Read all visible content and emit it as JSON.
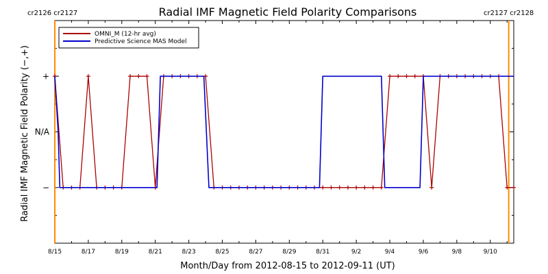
{
  "chart_data": {
    "type": "line",
    "title": "Radial IMF Magnetic Field Polarity Comparisons",
    "xlabel": "Month/Day from 2012-08-15 to 2012-09-11 (UT)",
    "ylabel": "Radial IMF Magnetic Field Polarity (−,+)",
    "xlim": [
      0,
      27.4
    ],
    "ylim": [
      -2,
      2
    ],
    "x_ticks": [
      {
        "x": 0,
        "label": "8/15"
      },
      {
        "x": 2,
        "label": "8/17"
      },
      {
        "x": 4,
        "label": "8/19"
      },
      {
        "x": 6,
        "label": "8/21"
      },
      {
        "x": 8,
        "label": "8/23"
      },
      {
        "x": 10,
        "label": "8/25"
      },
      {
        "x": 12,
        "label": "8/27"
      },
      {
        "x": 14,
        "label": "8/29"
      },
      {
        "x": 16,
        "label": "8/31"
      },
      {
        "x": 18,
        "label": "9/2"
      },
      {
        "x": 20,
        "label": "9/4"
      },
      {
        "x": 22,
        "label": "9/6"
      },
      {
        "x": 24,
        "label": "9/8"
      },
      {
        "x": 26,
        "label": "9/10"
      }
    ],
    "y_ticks": [
      {
        "y": 1,
        "label": "+"
      },
      {
        "y": 0,
        "label": "N/A"
      },
      {
        "y": -1,
        "label": "−"
      }
    ],
    "legend": {
      "position": "top-left"
    },
    "series": [
      {
        "name": "OMNI_M (12-hr avg)",
        "color": "#aa0000",
        "markers": "plus",
        "x": [
          0,
          0.5,
          1,
          1.5,
          2,
          2.5,
          3,
          3.5,
          4,
          4.5,
          5,
          5.5,
          6,
          6.5,
          7,
          7.5,
          8,
          8.5,
          9,
          9.5,
          10,
          10.5,
          11,
          11.5,
          12,
          12.5,
          13,
          13.5,
          14,
          14.5,
          15,
          15.5,
          16,
          16.5,
          17,
          17.5,
          18,
          18.5,
          19,
          19.5,
          20,
          20.5,
          21,
          21.5,
          22,
          22.5,
          23,
          23.5,
          24,
          24.5,
          25,
          25.5,
          26,
          26.5,
          27,
          27.4
        ],
        "values": [
          1,
          -1,
          -1,
          -1,
          1,
          -1,
          -1,
          -1,
          -1,
          1,
          1,
          1,
          -1,
          1,
          1,
          1,
          1,
          1,
          1,
          -1,
          -1,
          -1,
          -1,
          -1,
          -1,
          -1,
          -1,
          -1,
          -1,
          -1,
          -1,
          -1,
          -1,
          -1,
          -1,
          -1,
          -1,
          -1,
          -1,
          -1,
          1,
          1,
          1,
          1,
          1,
          -1,
          1,
          1,
          1,
          1,
          1,
          1,
          1,
          1,
          -1,
          -1
        ]
      },
      {
        "name": "Predictive Science MAS Model",
        "color": "#0000cc",
        "markers": "none",
        "x": [
          0,
          0.2,
          0.3,
          6.1,
          6.3,
          8.9,
          9.2,
          15.8,
          16.0,
          19.5,
          19.7,
          21.8,
          22.0,
          27.4
        ],
        "values": [
          1,
          0,
          -1,
          -1,
          1,
          1,
          -1,
          -1,
          1,
          1,
          -1,
          -1,
          1,
          1
        ]
      }
    ],
    "vertical_markers": [
      {
        "x": 0,
        "color": "#ff8c00"
      },
      {
        "x": 27.1,
        "color": "#ff8c00"
      }
    ],
    "cr_labels": {
      "left": "cr2126  cr2127",
      "right": "cr2127  cr2128",
      "color": "#e08a00"
    }
  }
}
